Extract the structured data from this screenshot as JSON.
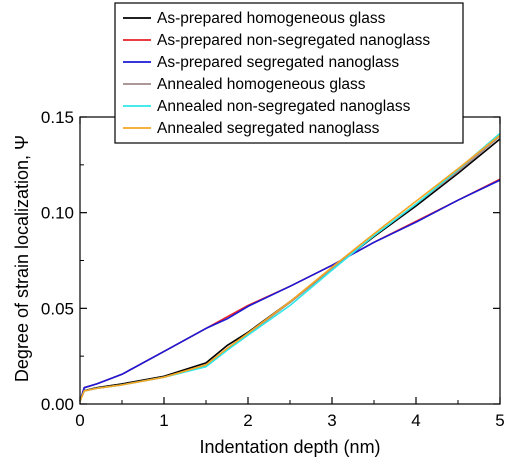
{
  "chart_data": {
    "type": "line",
    "xlabel": "Indentation depth (nm)",
    "ylabel": "Degree of strain localization, Ψ",
    "xlim": [
      0,
      5
    ],
    "ylim": [
      0,
      0.15
    ],
    "x_ticks": [
      "0",
      "1",
      "2",
      "3",
      "4",
      "5"
    ],
    "y_ticks": [
      "0.00",
      "0.05",
      "0.10",
      "0.15"
    ],
    "grid": false,
    "legend": "top-center",
    "x": [
      0,
      0.05,
      0.2,
      0.5,
      1.0,
      1.5,
      1.75,
      2.0,
      2.5,
      3.0,
      3.5,
      4.0,
      4.5,
      5.0
    ],
    "series": [
      {
        "name": "As-prepared homogeneous glass",
        "color": "#000000",
        "values": [
          0.0015,
          0.007,
          0.0085,
          0.0105,
          0.0145,
          0.0215,
          0.0305,
          0.0375,
          0.0535,
          0.0705,
          0.0875,
          0.1035,
          0.1205,
          0.1385
        ]
      },
      {
        "name": "As-prepared non-segregated nanoglass",
        "color": "#e8202a",
        "values": [
          0.0015,
          0.0085,
          0.0105,
          0.0155,
          0.0275,
          0.0395,
          0.0455,
          0.0515,
          0.0615,
          0.0725,
          0.0845,
          0.0955,
          0.1065,
          0.1175
        ]
      },
      {
        "name": "As-prepared segregated nanoglass",
        "color": "#1a1ad6",
        "values": [
          0.0015,
          0.0085,
          0.0105,
          0.0155,
          0.0275,
          0.0395,
          0.0445,
          0.051,
          0.0615,
          0.0725,
          0.0845,
          0.095,
          0.1065,
          0.117
        ]
      },
      {
        "name": "Annealed homogeneous glass",
        "color": "#a08a8a",
        "values": [
          0.0015,
          0.0068,
          0.0082,
          0.01,
          0.014,
          0.02,
          0.0285,
          0.0365,
          0.053,
          0.0705,
          0.088,
          0.1045,
          0.1215,
          0.14
        ]
      },
      {
        "name": "Annealed non-segregated nanoglass",
        "color": "#2ee8e8",
        "values": [
          0.0015,
          0.0068,
          0.0082,
          0.01,
          0.014,
          0.0195,
          0.028,
          0.036,
          0.0515,
          0.07,
          0.088,
          0.1045,
          0.1225,
          0.1415
        ]
      },
      {
        "name": "Annealed segregated nanoglass",
        "color": "#f5a623",
        "values": [
          0.0015,
          0.0068,
          0.0082,
          0.01,
          0.014,
          0.0205,
          0.029,
          0.037,
          0.0535,
          0.0715,
          0.089,
          0.106,
          0.123,
          0.1405
        ]
      }
    ]
  }
}
